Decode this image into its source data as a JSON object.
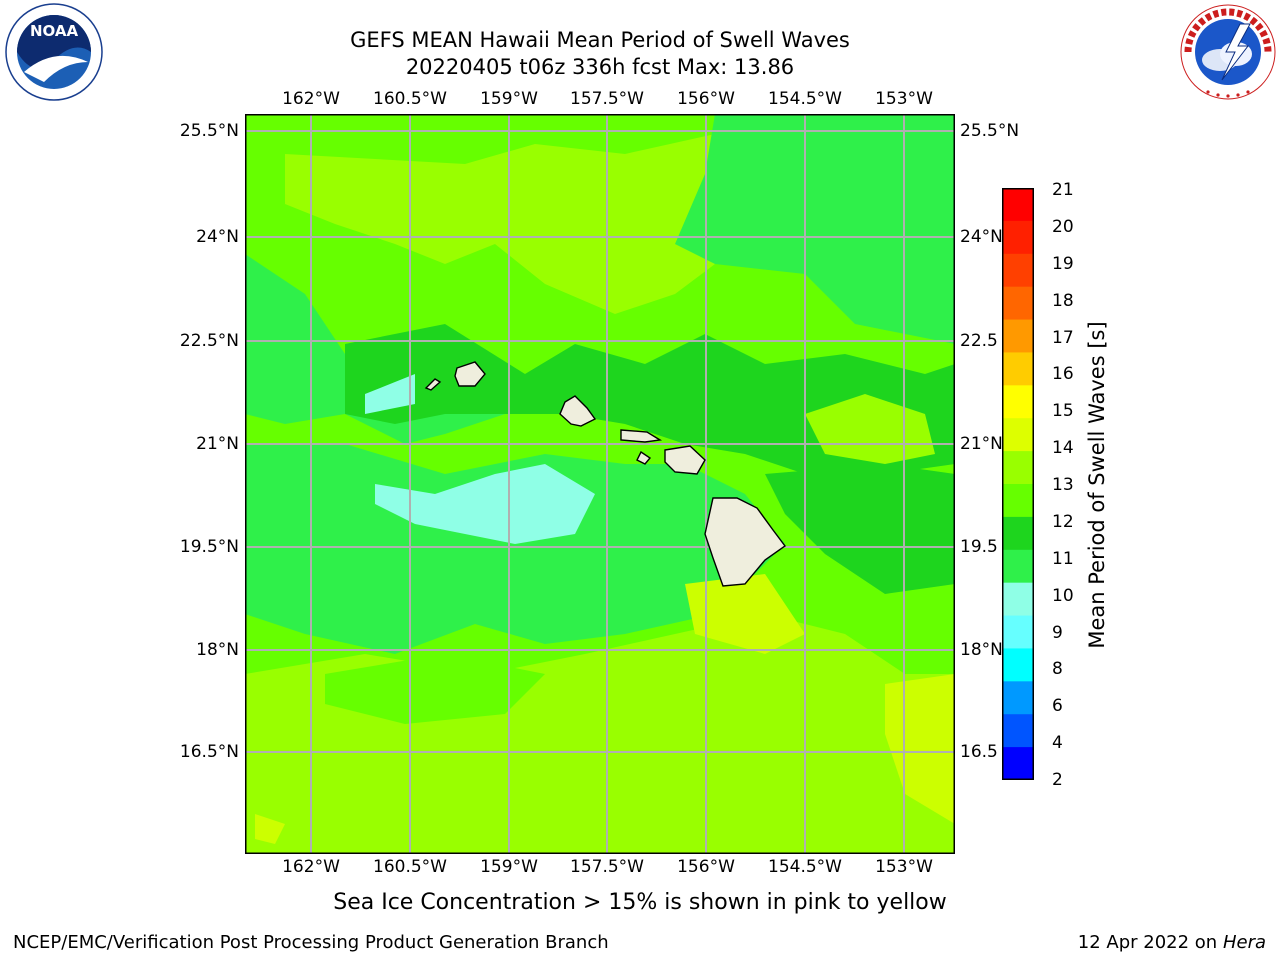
{
  "header": {
    "title_line1": "GEFS MEAN Hawaii Mean Period of Swell Waves",
    "title_line2": "20220405 t06z 336h fcst   Max: 13.86"
  },
  "logos": {
    "noaa_text": "NOAA",
    "noaa_ring": "NATIONAL OCEANIC AND ATMOSPHERIC ADMINISTRATION · U.S. DEPARTMENT OF COMMERCE",
    "nws_ring": "NATIONAL WEATHER SERVICE"
  },
  "map": {
    "lon_labels": [
      "162°W",
      "160.5°W",
      "159°W",
      "157.5°W",
      "156°W",
      "154.5°W",
      "153°W"
    ],
    "lat_labels": [
      "25.5°N",
      "24°N",
      "22.5°N",
      "21°N",
      "19.5°N",
      "18°N",
      "16.5°N"
    ],
    "lat_labels_right": [
      "25.5°N",
      "24°N",
      "22.5",
      "21°N",
      "19.5",
      "18°N",
      "16.5"
    ],
    "colors": {
      "green_dark": "#1ed51e",
      "green_mid": "#2ff04a",
      "green_light": "#66ff00",
      "chartreuse": "#99ff00",
      "yellow_green": "#ccff00",
      "cyan_light": "#8fffe6",
      "land": "#efeedd",
      "grid": "#b0b0b0"
    }
  },
  "colorbar": {
    "label": "Mean Period of Swell Waves [s]",
    "ticks": [
      "21",
      "20",
      "19",
      "18",
      "17",
      "16",
      "15",
      "14",
      "13",
      "12",
      "11",
      "10",
      "9",
      "8",
      "6",
      "4",
      "2"
    ],
    "colors": [
      "#ff0000",
      "#ff2000",
      "#ff4000",
      "#ff6600",
      "#ff9900",
      "#ffcc00",
      "#ffff00",
      "#ddff00",
      "#99ff00",
      "#66ff00",
      "#1ed51e",
      "#2ff04a",
      "#8fffe6",
      "#66ffff",
      "#00ffff",
      "#0099ff",
      "#0055ff",
      "#0000ff"
    ]
  },
  "note": "Sea Ice Concentration > 15% is shown in pink to yellow",
  "footer": {
    "left": "NCEP/EMC/Verification Post Processing Product Generation Branch",
    "right_date": "12 Apr 2022 on ",
    "right_host": "Hera"
  }
}
